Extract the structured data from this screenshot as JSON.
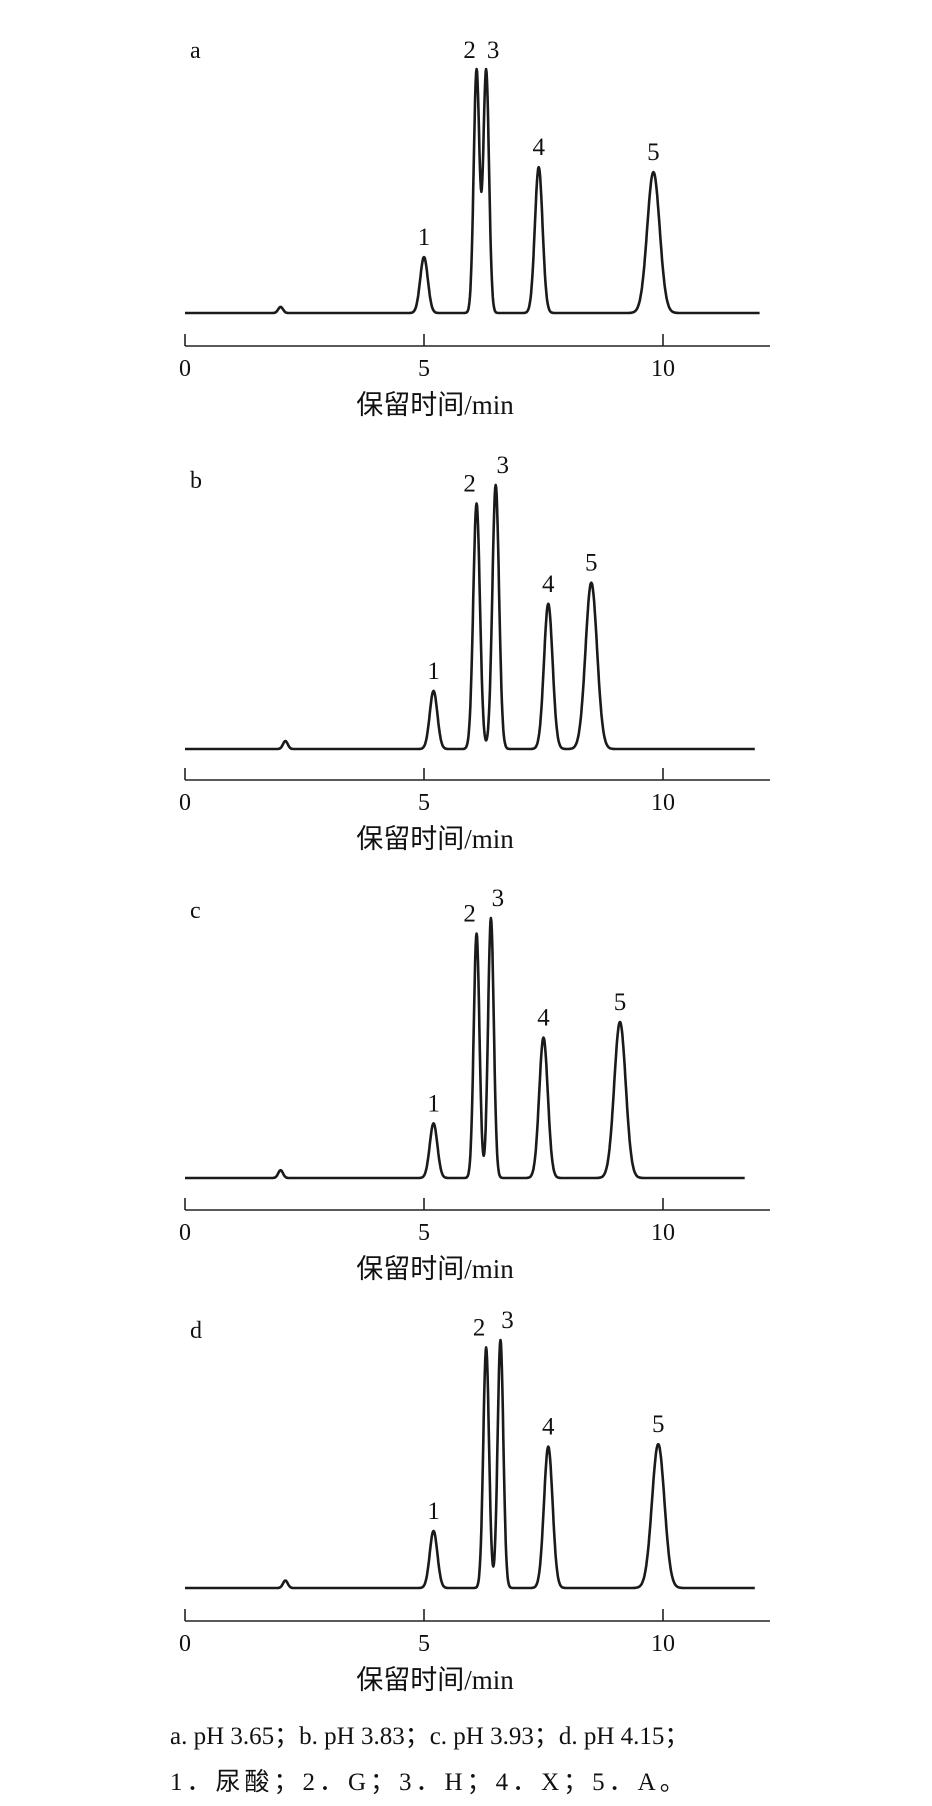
{
  "chart_data": [
    {
      "type": "line",
      "panel_label": "a",
      "xlabel": "保留时间/min",
      "xticks": [
        "0",
        "5",
        "10"
      ],
      "xlim": [
        0,
        12
      ],
      "baseline_bump": {
        "x": 2.0,
        "height": 0.025
      },
      "peaks": [
        {
          "label": "1",
          "x": 5.0,
          "height": 0.23,
          "width": 0.08
        },
        {
          "label": "2",
          "x": 6.1,
          "height": 1.0,
          "width": 0.06
        },
        {
          "label": "3",
          "x": 6.3,
          "height": 1.0,
          "width": 0.06
        },
        {
          "label": "4",
          "x": 7.4,
          "height": 0.6,
          "width": 0.08
        },
        {
          "label": "5",
          "x": 9.8,
          "height": 0.58,
          "width": 0.13
        }
      ]
    },
    {
      "type": "line",
      "panel_label": "b",
      "xlabel": "保留时间/min",
      "xticks": [
        "0",
        "5",
        "10"
      ],
      "xlim": [
        0,
        12
      ],
      "baseline_bump": {
        "x": 2.1,
        "height": 0.03
      },
      "peaks": [
        {
          "label": "1",
          "x": 5.2,
          "height": 0.22,
          "width": 0.08
        },
        {
          "label": "2",
          "x": 6.1,
          "height": 0.93,
          "width": 0.07
        },
        {
          "label": "3",
          "x": 6.5,
          "height": 1.0,
          "width": 0.07
        },
        {
          "label": "4",
          "x": 7.6,
          "height": 0.55,
          "width": 0.09
        },
        {
          "label": "5",
          "x": 8.5,
          "height": 0.63,
          "width": 0.12
        }
      ]
    },
    {
      "type": "line",
      "panel_label": "c",
      "xlabel": "保留时间/min",
      "xticks": [
        "0",
        "5",
        "10"
      ],
      "xlim": [
        0,
        12
      ],
      "baseline_bump": {
        "x": 2.0,
        "height": 0.03
      },
      "peaks": [
        {
          "label": "1",
          "x": 5.2,
          "height": 0.21,
          "width": 0.08
        },
        {
          "label": "2",
          "x": 6.1,
          "height": 0.94,
          "width": 0.06
        },
        {
          "label": "3",
          "x": 6.4,
          "height": 1.0,
          "width": 0.06
        },
        {
          "label": "4",
          "x": 7.5,
          "height": 0.54,
          "width": 0.09
        },
        {
          "label": "5",
          "x": 9.1,
          "height": 0.6,
          "width": 0.12
        }
      ]
    },
    {
      "type": "line",
      "panel_label": "d",
      "xlabel": "保留时间/min",
      "xticks": [
        "0",
        "5",
        "10"
      ],
      "xlim": [
        0,
        12
      ],
      "baseline_bump": {
        "x": 2.1,
        "height": 0.03
      },
      "peaks": [
        {
          "label": "1",
          "x": 5.2,
          "height": 0.23,
          "width": 0.08
        },
        {
          "label": "2",
          "x": 6.3,
          "height": 0.97,
          "width": 0.06
        },
        {
          "label": "3",
          "x": 6.6,
          "height": 1.0,
          "width": 0.06
        },
        {
          "label": "4",
          "x": 7.6,
          "height": 0.57,
          "width": 0.09
        },
        {
          "label": "5",
          "x": 9.9,
          "height": 0.58,
          "width": 0.13
        }
      ]
    }
  ],
  "caption": {
    "line1": "a. pH 3.65；b. pH 3.83；c. pH 3.93；d. pH 4.15；",
    "line2": "1．尿酸；2．G；3．H；4．X；5．A。"
  }
}
